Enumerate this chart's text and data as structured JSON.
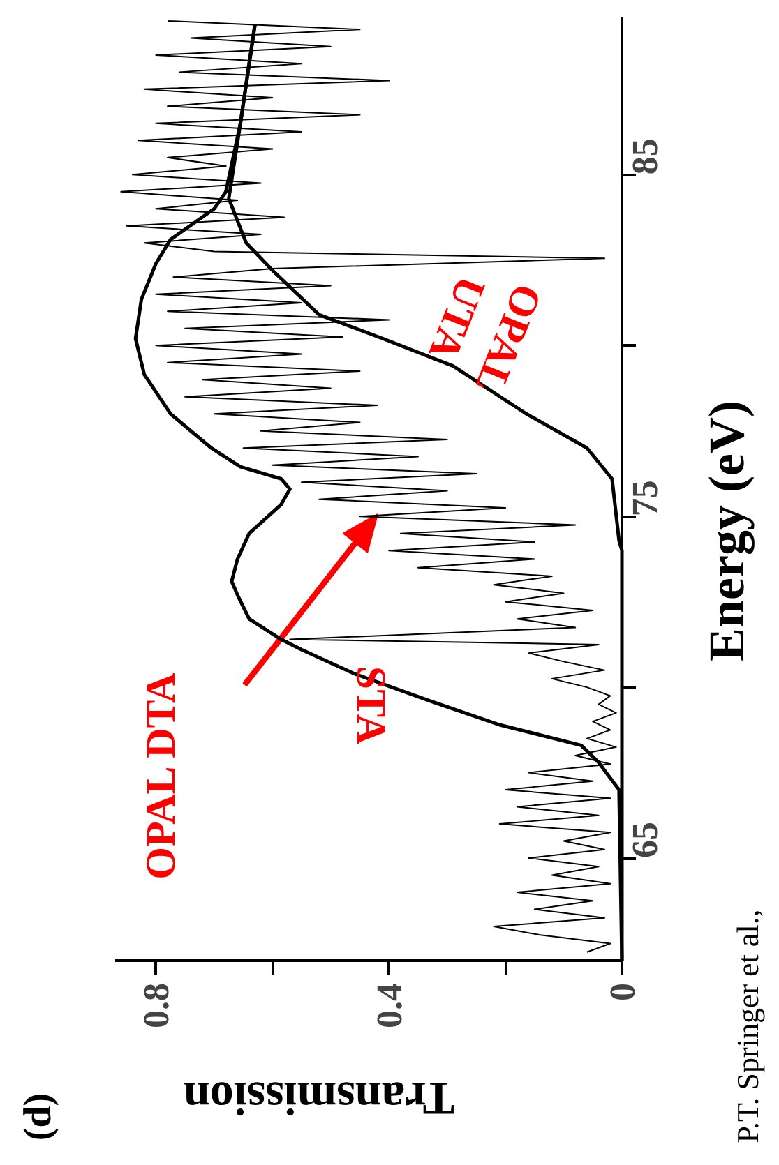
{
  "chart_data": {
    "type": "line",
    "xlabel": "Transmission",
    "ylabel": "Energy (eV)",
    "xlim": [
      0.87,
      0
    ],
    "xticks": [
      0,
      {
        "value": 0.2,
        "label": null
      },
      0.4,
      {
        "value": 0.6,
        "label": null
      },
      0.8
    ],
    "ylim": [
      62,
      89.6
    ],
    "yticks": [
      65,
      {
        "value": 70,
        "label": null
      },
      75,
      {
        "value": 80,
        "label": null
      },
      85
    ],
    "series": [
      {
        "color": "#000000",
        "values": [
          62.25,
          62.5,
          62.75,
          63.0,
          63.25,
          63.5,
          63.75,
          64.0,
          64.25,
          64.5,
          64.75,
          65.0,
          65.25,
          65.5,
          65.75,
          66.0,
          66.25,
          66.5,
          66.75,
          67.0,
          67.25,
          67.5,
          67.75,
          68.0,
          68.25,
          68.5,
          68.75,
          69.0,
          69.25,
          69.5,
          69.75,
          70.0,
          70.25,
          70.5,
          70.75,
          71.0,
          71.25,
          71.4,
          71.75,
          72.0,
          72.25,
          72.5,
          72.75,
          73.0,
          73.25,
          73.5,
          73.75,
          74.0,
          74.25,
          74.5,
          74.75,
          75.0,
          75.25,
          75.5,
          75.75,
          76.0,
          76.25,
          76.5,
          76.75,
          77.0,
          77.25,
          77.5,
          77.75,
          78.0,
          78.25,
          78.5,
          78.75,
          79.0,
          79.25,
          79.5,
          79.75,
          80.0,
          80.25,
          80.5,
          80.75,
          81.0,
          81.25,
          81.5,
          81.75,
          82.0,
          82.25,
          82.55,
          82.75,
          83.0,
          83.25,
          83.5,
          83.75,
          84.0,
          84.25,
          84.5,
          84.75,
          85.0,
          85.25,
          85.5,
          85.75,
          86.0,
          86.25,
          86.5,
          86.75,
          87.0,
          87.25,
          87.5,
          87.75,
          88.0,
          88.25,
          88.5,
          88.75,
          89.0,
          89.25,
          89.5
        ],
        "x": [
          0.06,
          0.02,
          0.14,
          0.22,
          0.03,
          0.15,
          0.05,
          0.18,
          0.02,
          0.12,
          0.04,
          0.16,
          0.03,
          0.1,
          0.02,
          0.21,
          0.04,
          0.18,
          0.02,
          0.2,
          0.05,
          0.16,
          0.02,
          0.08,
          0.01,
          0.06,
          0.02,
          0.05,
          0.01,
          0.04,
          0.02,
          0.06,
          0.12,
          0.03,
          0.1,
          0.16,
          0.04,
          0.57,
          0.08,
          0.18,
          0.05,
          0.2,
          0.1,
          0.22,
          0.12,
          0.35,
          0.15,
          0.4,
          0.15,
          0.38,
          0.08,
          0.45,
          0.2,
          0.52,
          0.3,
          0.55,
          0.25,
          0.6,
          0.35,
          0.65,
          0.3,
          0.62,
          0.45,
          0.7,
          0.42,
          0.75,
          0.5,
          0.72,
          0.45,
          0.78,
          0.55,
          0.8,
          0.48,
          0.75,
          0.4,
          0.78,
          0.55,
          0.8,
          0.5,
          0.77,
          0.6,
          0.03,
          0.7,
          0.82,
          0.62,
          0.85,
          0.58,
          0.8,
          0.66,
          0.86,
          0.62,
          0.84,
          0.68,
          0.78,
          0.6,
          0.83,
          0.55,
          0.8,
          0.45,
          0.78,
          0.6,
          0.82,
          0.4,
          0.76,
          0.55,
          0.8,
          0.5,
          0.74,
          0.45,
          0.78
        ]
      },
      {
        "color": "#000000",
        "values": [
          62,
          67.0,
          67.8,
          68.3,
          68.9,
          69.6,
          70.4,
          71.1,
          71.4,
          72.0,
          72.7,
          73.1,
          73.75,
          74.5,
          75.35,
          75.8,
          76.1,
          76.45,
          77.0,
          78.0,
          79.15,
          80.2,
          81.35,
          82.4,
          83.1,
          84.0,
          84.5,
          86.5,
          89.4
        ],
        "x": [
          0,
          0.005,
          0.04,
          0.07,
          0.21,
          0.33,
          0.46,
          0.55,
          0.585,
          0.64,
          0.66,
          0.67,
          0.66,
          0.64,
          0.585,
          0.57,
          0.585,
          0.655,
          0.705,
          0.775,
          0.82,
          0.835,
          0.825,
          0.8,
          0.775,
          0.7,
          0.68,
          0.655,
          0.63
        ]
      },
      {
        "color": "#000000",
        "values": [
          62,
          74.0,
          74.3,
          76.1,
          77.0,
          78.0,
          79.4,
          80.2,
          80.9,
          82.2,
          83.0,
          84.3,
          86.5,
          89.4
        ],
        "x": [
          0,
          0,
          0.005,
          0.017,
          0.06,
          0.164,
          0.29,
          0.41,
          0.52,
          0.6,
          0.645,
          0.675,
          0.655,
          0.63
        ]
      }
    ],
    "annotations": [
      "OPAL DTA",
      "STA",
      "OPAL\nUTA",
      "(d)",
      "P.T. Springer et al.,"
    ]
  }
}
